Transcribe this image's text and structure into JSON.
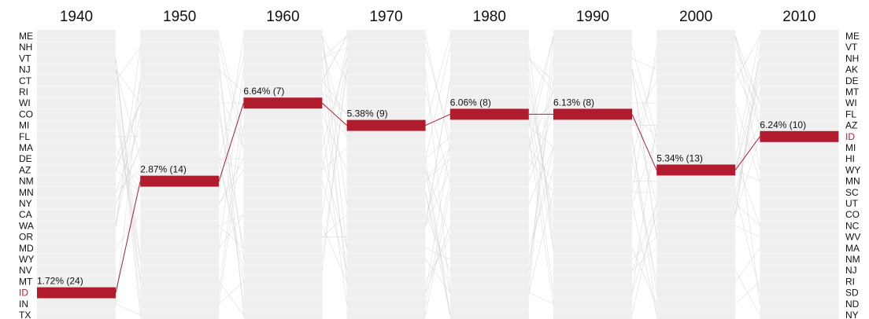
{
  "chart_data": {
    "type": "bump",
    "title": "",
    "highlight_state": "ID",
    "highlight_color": "#b01c2e",
    "column_color": "#efefef",
    "connector_color": "#cfcfcf",
    "years": [
      "1940",
      "1950",
      "1960",
      "1970",
      "1980",
      "1990",
      "2000",
      "2010"
    ],
    "left_ranking": [
      "ME",
      "NH",
      "VT",
      "NJ",
      "CT",
      "RI",
      "WI",
      "CO",
      "MI",
      "FL",
      "MA",
      "DE",
      "AZ",
      "NM",
      "MN",
      "NY",
      "CA",
      "WA",
      "OR",
      "MD",
      "WY",
      "NV",
      "MT",
      "ID",
      "IN",
      "TX"
    ],
    "right_ranking": [
      "ME",
      "VT",
      "NH",
      "AK",
      "DE",
      "MT",
      "WI",
      "FL",
      "AZ",
      "ID",
      "MI",
      "HI",
      "WY",
      "MN",
      "SC",
      "UT",
      "CO",
      "NC",
      "WV",
      "MA",
      "NM",
      "NJ",
      "RI",
      "SD",
      "ND",
      "NY"
    ],
    "series": [
      {
        "name": "ID",
        "ranks": [
          24,
          14,
          7,
          9,
          8,
          8,
          13,
          10
        ],
        "values": [
          1.72,
          2.87,
          6.64,
          5.38,
          6.06,
          6.13,
          5.34,
          6.24
        ],
        "labels": [
          "1.72% (24)",
          "2.87% (14)",
          "6.64% (7)",
          "5.38% (9)",
          "6.06% (8)",
          "6.13% (8)",
          "5.34% (13)",
          "6.24% (10)"
        ]
      }
    ]
  }
}
